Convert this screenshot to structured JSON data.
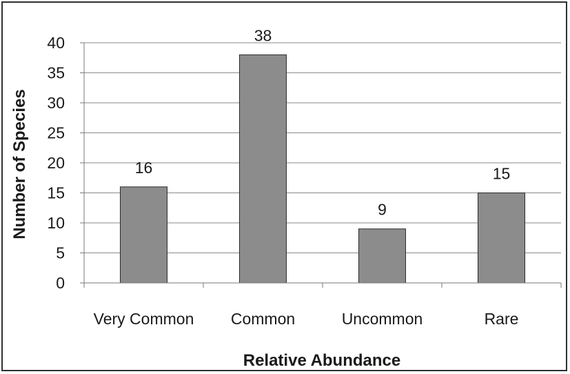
{
  "chart_data": {
    "type": "bar",
    "categories": [
      "Very Common",
      "Common",
      "Uncommon",
      "Rare"
    ],
    "values": [
      16,
      38,
      9,
      15
    ],
    "data_labels": [
      "16",
      "38",
      "9",
      "15"
    ],
    "title": "",
    "xlabel": "Relative Abundance",
    "ylabel": "Number of Species",
    "ylim": [
      0,
      40
    ],
    "yticks": [
      0,
      5,
      10,
      15,
      20,
      25,
      30,
      35,
      40
    ],
    "ytick_labels": [
      "0",
      "5",
      "10",
      "15",
      "20",
      "25",
      "30",
      "35",
      "40"
    ],
    "grid": true,
    "legend": "none",
    "colors": {
      "bar": "#8c8c8c",
      "bar_stroke": "#2b2b2b",
      "grid": "#8a8a8a",
      "axis": "#7a7a7a"
    }
  }
}
